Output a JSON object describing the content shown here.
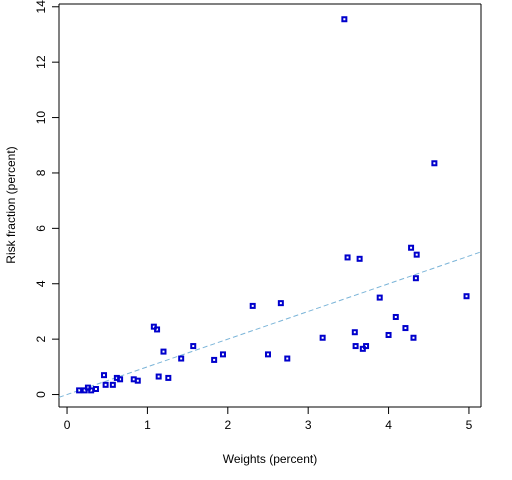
{
  "chart_data": {
    "type": "scatter",
    "xlabel": "Weights (percent)",
    "ylabel": "Risk fraction (percent)",
    "xlim": [
      -0.1,
      5.15
    ],
    "ylim": [
      -0.45,
      14.1
    ],
    "xticks": [
      "0",
      "1",
      "2",
      "3",
      "4",
      "5"
    ],
    "yticks": [
      "0",
      "2",
      "4",
      "6",
      "8",
      "10",
      "12",
      "14"
    ],
    "grid": false,
    "colors": {
      "points": "#0000cc",
      "fit_line": "#7ab4d8"
    },
    "x": [
      0.15,
      0.22,
      0.26,
      0.3,
      0.36,
      0.46,
      0.48,
      0.57,
      0.62,
      0.66,
      0.83,
      0.88,
      1.08,
      1.12,
      1.14,
      1.2,
      1.26,
      1.42,
      1.57,
      1.83,
      1.94,
      2.31,
      2.5,
      2.66,
      2.74,
      3.18,
      3.45,
      3.49,
      3.58,
      3.59,
      3.64,
      3.68,
      3.72,
      3.89,
      4.0,
      4.09,
      4.21,
      4.28,
      4.31,
      4.34,
      4.35,
      4.57,
      4.97
    ],
    "y": [
      0.15,
      0.15,
      0.25,
      0.15,
      0.2,
      0.7,
      0.35,
      0.35,
      0.6,
      0.55,
      0.55,
      0.5,
      2.45,
      2.35,
      0.65,
      1.55,
      0.6,
      1.3,
      1.75,
      1.25,
      1.45,
      3.2,
      1.45,
      3.3,
      1.3,
      2.05,
      13.55,
      4.95,
      2.25,
      1.75,
      4.9,
      1.65,
      1.75,
      3.5,
      2.15,
      2.8,
      2.4,
      5.3,
      2.05,
      4.2,
      5.05,
      8.35,
      3.55
    ],
    "fit_line": {
      "x": [
        -0.1,
        5.15
      ],
      "y": [
        -0.1,
        5.15
      ]
    }
  }
}
